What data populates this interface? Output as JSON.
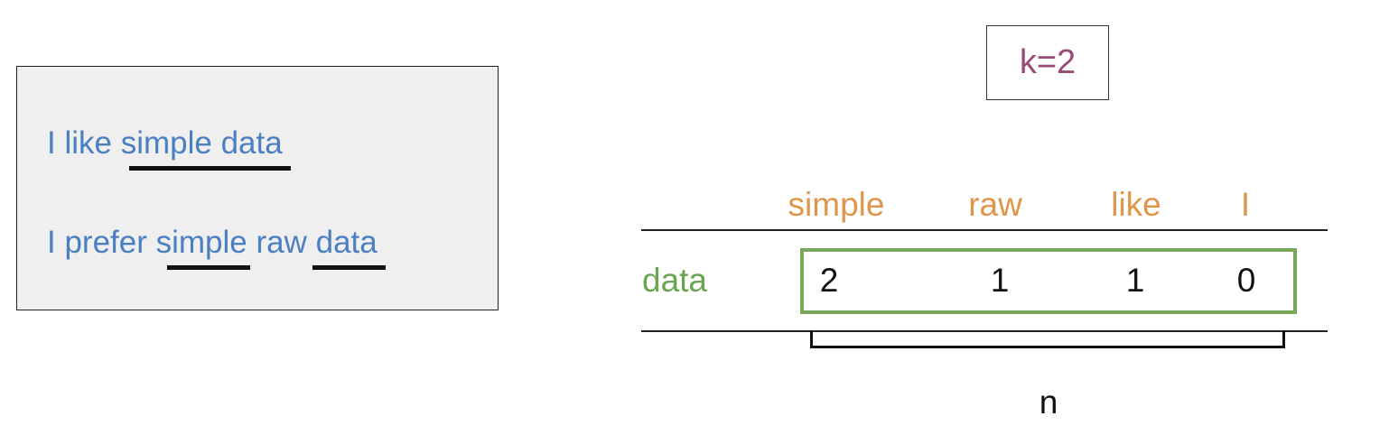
{
  "corpus": {
    "sentence1": {
      "prefix": "I like s",
      "w1": "imple",
      "w2": " data "
    },
    "sentence2": {
      "prefix": "I prefer s",
      "w1": "imple",
      "mid": " raw ",
      "w2": "data "
    }
  },
  "k_label": "k=2",
  "matrix": {
    "columns": [
      "simple",
      "raw",
      "like",
      "I"
    ],
    "row_label": "data",
    "counts": [
      "2",
      "1",
      "1",
      "0"
    ]
  },
  "n_label": "n",
  "colors": {
    "sentence_text": "#4a7fc1",
    "column_headers": "#e0964a",
    "row_label": "#6aa552",
    "highlight_box": "#7aa85a",
    "k_text": "#9b4a78",
    "corpus_background": "#efefef"
  }
}
